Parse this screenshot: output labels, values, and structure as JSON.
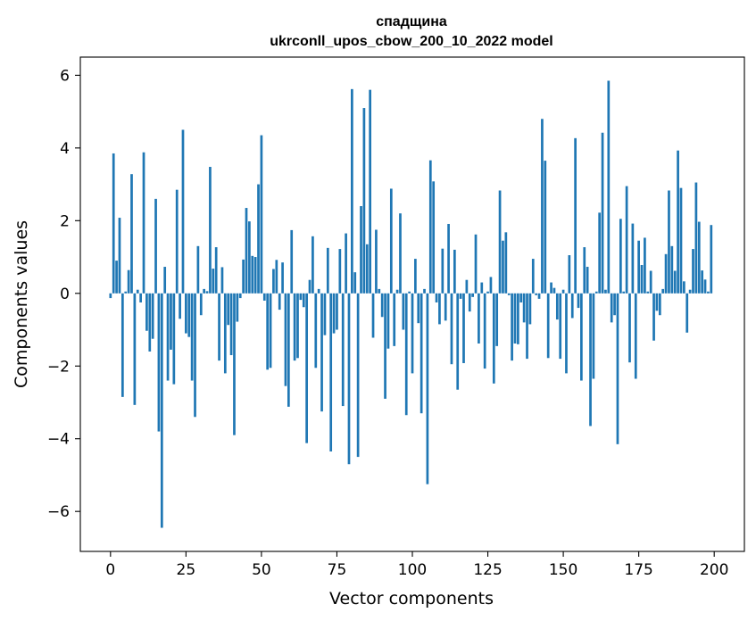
{
  "chart_data": {
    "type": "bar",
    "title": "спадщина",
    "subtitle": "ukrconll_upos_cbow_200_10_2022 model",
    "xlabel": "Vector components",
    "ylabel": "Components values",
    "xlim": [
      -10,
      210
    ],
    "ylim": [
      -7.1,
      6.5
    ],
    "xticks": [
      0,
      25,
      50,
      75,
      100,
      125,
      150,
      175,
      200
    ],
    "xtick_labels": [
      "0",
      "25",
      "50",
      "75",
      "100",
      "125",
      "150",
      "175",
      "200"
    ],
    "yticks": [
      -6,
      -4,
      -2,
      0,
      2,
      4,
      6
    ],
    "ytick_labels": [
      "−6",
      "−4",
      "−2",
      "0",
      "2",
      "4",
      "6"
    ],
    "grid": false,
    "bar_color": "#1f77b4",
    "values": [
      -0.13,
      3.85,
      0.9,
      2.08,
      -2.85,
      0.05,
      0.64,
      3.28,
      -3.07,
      0.1,
      -0.25,
      3.88,
      -1.03,
      -1.6,
      -1.25,
      2.6,
      -3.8,
      -6.45,
      0.73,
      -2.4,
      -1.55,
      -2.5,
      2.85,
      -0.7,
      4.5,
      -1.1,
      -1.2,
      -2.4,
      -3.4,
      1.3,
      -0.6,
      0.12,
      0.06,
      3.48,
      0.68,
      1.27,
      -1.85,
      0.72,
      -2.2,
      -0.87,
      -1.7,
      -3.9,
      -0.78,
      -0.13,
      0.93,
      2.35,
      1.98,
      1.03,
      1.0,
      3.0,
      4.35,
      -0.2,
      -2.1,
      -2.05,
      0.67,
      0.92,
      -0.45,
      0.85,
      -2.55,
      -3.12,
      1.74,
      -1.85,
      -1.78,
      -0.18,
      -0.38,
      -4.12,
      0.37,
      1.57,
      -2.05,
      0.12,
      -3.25,
      -1.15,
      1.25,
      -4.35,
      -1.1,
      -1.0,
      1.22,
      -3.1,
      1.65,
      -4.7,
      5.62,
      0.58,
      -4.5,
      2.4,
      5.1,
      1.35,
      5.6,
      -1.22,
      1.75,
      0.12,
      -0.65,
      -2.9,
      -1.52,
      2.88,
      -1.45,
      0.1,
      2.2,
      -1.0,
      -3.35,
      0.05,
      -2.2,
      0.95,
      -0.82,
      -3.3,
      0.12,
      -5.25,
      3.66,
      3.08,
      -0.25,
      -0.85,
      1.23,
      -0.75,
      1.91,
      -1.95,
      1.2,
      -2.65,
      -0.15,
      -1.92,
      0.37,
      -0.5,
      -0.1,
      1.62,
      -1.38,
      0.3,
      -2.07,
      0.05,
      0.45,
      -2.48,
      -1.45,
      2.83,
      1.45,
      1.68,
      -0.05,
      -1.85,
      -1.38,
      -1.4,
      -0.25,
      -0.8,
      -1.8,
      -0.85,
      0.95,
      -0.05,
      -0.15,
      4.8,
      3.65,
      -1.78,
      0.3,
      0.15,
      -0.72,
      -1.8,
      0.1,
      -2.2,
      1.05,
      -0.68,
      4.27,
      -0.4,
      -2.4,
      1.27,
      0.73,
      -3.65,
      -2.35,
      0.05,
      2.22,
      4.42,
      0.1,
      5.85,
      -0.8,
      -0.6,
      -4.15,
      2.05,
      0.05,
      2.95,
      -1.9,
      1.92,
      -2.35,
      1.45,
      0.78,
      1.53,
      0.05,
      0.62,
      -1.3,
      -0.48,
      -0.6,
      0.12,
      1.08,
      2.83,
      1.3,
      0.62,
      3.93,
      2.9,
      0.33,
      -1.08,
      0.1,
      1.22,
      3.05,
      1.97,
      0.63,
      0.38,
      0.05,
      1.88
    ]
  }
}
